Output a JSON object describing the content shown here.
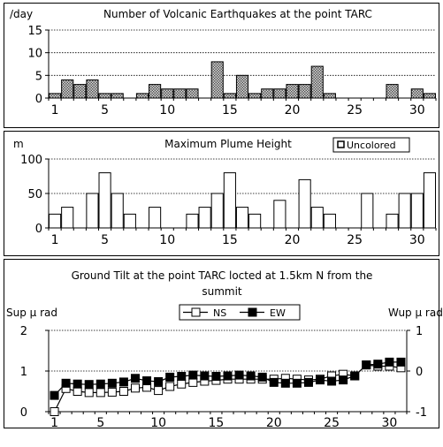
{
  "chart_data": [
    {
      "type": "bar",
      "title": "Number of Volcanic Earthquakes at the point TARC",
      "ylabel": "/day",
      "categories": [
        1,
        2,
        3,
        4,
        5,
        6,
        7,
        8,
        9,
        10,
        11,
        12,
        13,
        14,
        15,
        16,
        17,
        18,
        19,
        20,
        21,
        22,
        23,
        24,
        25,
        26,
        27,
        28,
        29,
        30,
        31
      ],
      "values": [
        1,
        4,
        3,
        4,
        1,
        1,
        0,
        1,
        3,
        2,
        2,
        2,
        0,
        8,
        1,
        5,
        1,
        2,
        2,
        3,
        3,
        7,
        1,
        0,
        0,
        0,
        0,
        3,
        0,
        2,
        1
      ],
      "ylim": [
        0,
        15
      ],
      "yticks": [
        0,
        5,
        10,
        15
      ],
      "xticks": [
        1,
        5,
        10,
        15,
        20,
        25,
        30
      ],
      "grid": true,
      "bar_fill": "#b0b0b0"
    },
    {
      "type": "bar",
      "title": "Maximum Plume Height",
      "ylabel": "m",
      "legend": "Uncolored",
      "categories": [
        1,
        2,
        3,
        4,
        5,
        6,
        7,
        8,
        9,
        10,
        11,
        12,
        13,
        14,
        15,
        16,
        17,
        18,
        19,
        20,
        21,
        22,
        23,
        24,
        25,
        26,
        27,
        28,
        29,
        30,
        31
      ],
      "values": [
        20,
        30,
        0,
        50,
        80,
        50,
        20,
        0,
        30,
        0,
        0,
        20,
        30,
        50,
        80,
        30,
        20,
        0,
        40,
        0,
        70,
        30,
        20,
        0,
        0,
        50,
        0,
        20,
        50,
        50,
        80
      ],
      "ylim": [
        0,
        100
      ],
      "yticks": [
        0,
        50,
        100
      ],
      "xticks": [
        1,
        5,
        10,
        15,
        20,
        25,
        30
      ],
      "grid": true,
      "bar_fill": "#ffffff"
    },
    {
      "type": "line",
      "title_line1": "Ground Tilt at the point TARC locted at 1.5km N from the",
      "title_line2": "summit",
      "ylabel_left": "Sup μ rad",
      "ylabel_right": "Wup μ rad",
      "x": [
        1,
        2,
        3,
        4,
        5,
        6,
        7,
        8,
        9,
        10,
        11,
        12,
        13,
        14,
        15,
        16,
        17,
        18,
        19,
        20,
        21,
        22,
        23,
        24,
        25,
        26,
        27,
        28,
        29,
        30,
        31
      ],
      "series": [
        {
          "name": "NS",
          "axis": "left",
          "marker": "hollow-square",
          "values": [
            0.0,
            0.57,
            0.5,
            0.47,
            0.47,
            0.48,
            0.5,
            0.58,
            0.6,
            0.52,
            0.62,
            0.68,
            0.72,
            0.75,
            0.77,
            0.8,
            0.8,
            0.8,
            0.8,
            0.8,
            0.82,
            0.8,
            0.78,
            0.8,
            0.88,
            0.92,
            0.88,
            1.15,
            1.12,
            1.12,
            1.08
          ]
        },
        {
          "name": "EW",
          "axis": "right",
          "marker": "filled-square",
          "values": [
            -0.6,
            -0.3,
            -0.32,
            -0.33,
            -0.32,
            -0.3,
            -0.27,
            -0.18,
            -0.24,
            -0.26,
            -0.15,
            -0.13,
            -0.1,
            -0.12,
            -0.13,
            -0.12,
            -0.1,
            -0.12,
            -0.15,
            -0.28,
            -0.3,
            -0.3,
            -0.28,
            -0.22,
            -0.25,
            -0.22,
            -0.12,
            0.15,
            0.17,
            0.22,
            0.22
          ]
        }
      ],
      "ylim_left": [
        0,
        2
      ],
      "ylim_right": [
        -1,
        1
      ],
      "yticks_left": [
        0,
        1,
        2
      ],
      "yticks_right": [
        -1,
        0,
        1
      ],
      "xticks": [
        1,
        5,
        10,
        15,
        20,
        25,
        30
      ],
      "legend_position": "top-center",
      "grid": true
    }
  ]
}
